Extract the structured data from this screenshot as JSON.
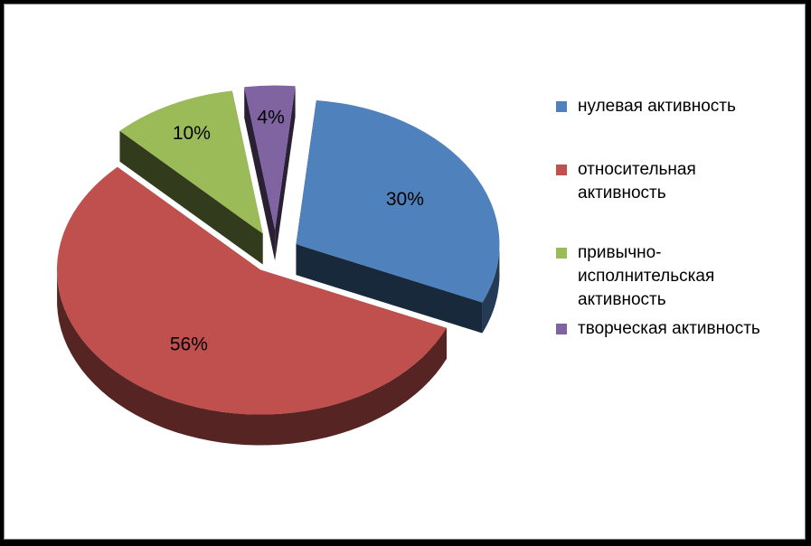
{
  "chart_data": {
    "type": "pie",
    "categories": [
      "нулевая активность",
      "относительная активность",
      "привычно-исполнительская активность",
      "творческая активность"
    ],
    "values": [
      30,
      56,
      10,
      4
    ],
    "labels": [
      "30%",
      "56%",
      "10%",
      "4%"
    ],
    "colors": [
      "#4f81bd",
      "#c0504d",
      "#9bbb59",
      "#8064a2"
    ],
    "exploded": true,
    "three_d": true,
    "legend": "right",
    "title": ""
  },
  "legend": {
    "items": [
      "нулевая активность",
      "относительная активность",
      "привычно-исполнительская активность",
      "творческая активность"
    ]
  }
}
